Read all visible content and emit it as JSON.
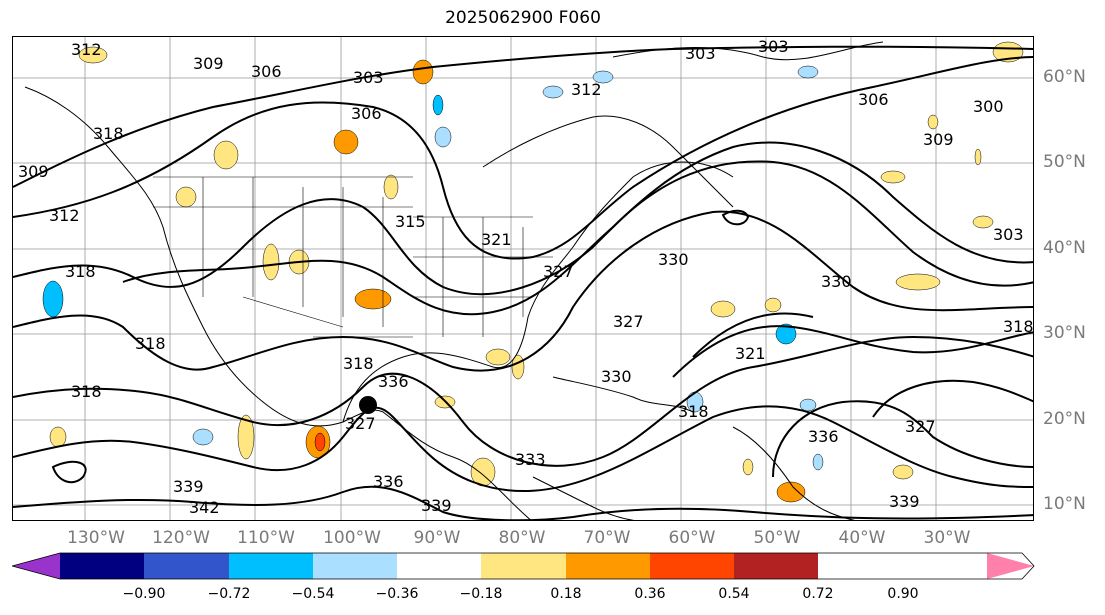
{
  "title": "2025062900 F060",
  "lat_labels": [
    "60°N",
    "50°N",
    "40°N",
    "30°N",
    "20°N",
    "10°N"
  ],
  "lon_labels": [
    "130°W",
    "120°W",
    "110°W",
    "100°W",
    "90°W",
    "80°W",
    "70°W",
    "60°W",
    "50°W",
    "40°W",
    "30°W"
  ],
  "colorbar": {
    "ticks": [
      "−0.90",
      "−0.72",
      "−0.54",
      "−0.36",
      "−0.18",
      "0.18",
      "0.36",
      "0.54",
      "0.72",
      "0.90"
    ],
    "colors": [
      "#9933cc",
      "#000080",
      "#3355cc",
      "#00bfff",
      "#aadfff",
      "#ffffff",
      "#ffe680",
      "#ff9900",
      "#ff4500",
      "#b22222",
      "#ff80aa"
    ]
  },
  "contour_labels": [
    "312",
    "309",
    "306",
    "303",
    "306",
    "303",
    "303",
    "312",
    "306",
    "309",
    "300",
    "309",
    "312",
    "315",
    "321",
    "327",
    "303",
    "318",
    "330",
    "330",
    "318",
    "327",
    "318",
    "321",
    "330",
    "318",
    "318",
    "336",
    "318",
    "327",
    "327",
    "336",
    "333",
    "339",
    "342",
    "336",
    "339",
    "339",
    "318"
  ],
  "colors": {
    "contour": "#000000",
    "axis_label": "#7a7a7a"
  }
}
